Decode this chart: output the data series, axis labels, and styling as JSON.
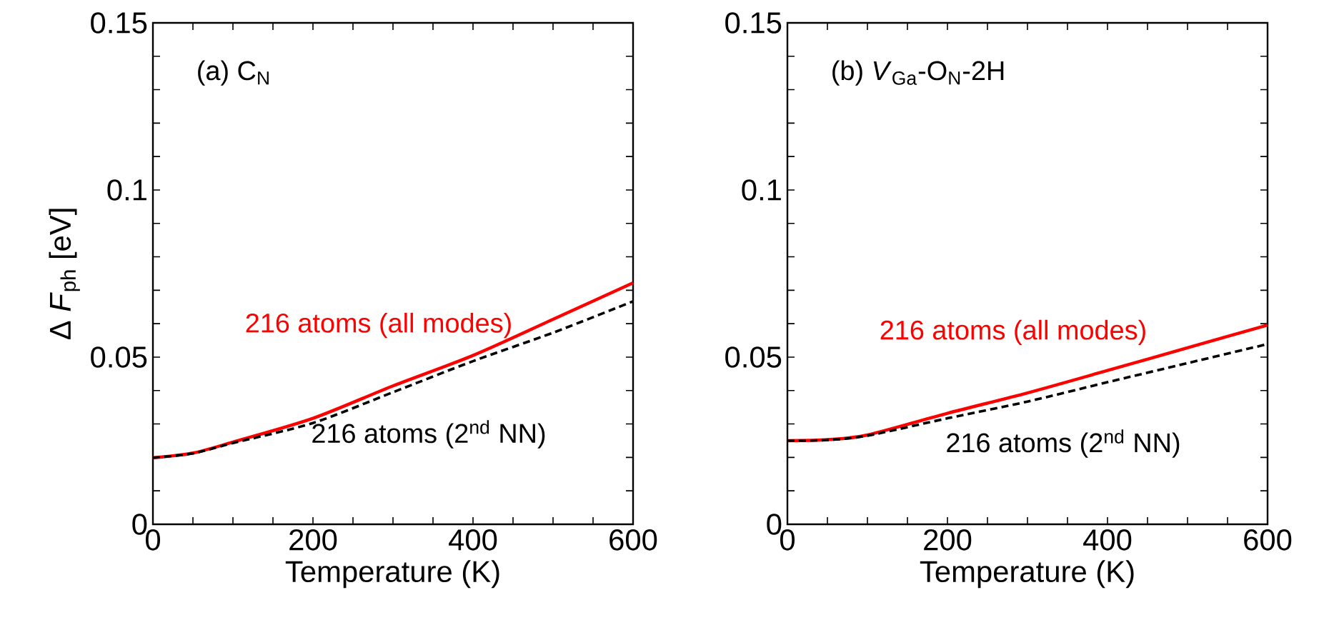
{
  "chart_data": [
    {
      "type": "line",
      "title": "(a) C$_{N}$",
      "xlabel": "Temperature (K)",
      "ylabel": "Δ *F*$_{ph}$ [eV]",
      "x": [
        0,
        50,
        100,
        200,
        300,
        400,
        500,
        600
      ],
      "xlim": [
        0,
        600
      ],
      "ylim": [
        0,
        0.15
      ],
      "xticks": [
        0,
        {
          "value": 50,
          "label": null
        },
        {
          "value": 100,
          "label": null
        },
        {
          "value": 150,
          "label": null
        },
        200,
        {
          "value": 250,
          "label": null
        },
        {
          "value": 300,
          "label": null
        },
        {
          "value": 350,
          "label": null
        },
        400,
        {
          "value": 450,
          "label": null
        },
        {
          "value": 500,
          "label": null
        },
        {
          "value": 550,
          "label": null
        },
        600
      ],
      "yticks": [
        0,
        {
          "value": 0.01,
          "label": null
        },
        {
          "value": 0.02,
          "label": null
        },
        {
          "value": 0.03,
          "label": null
        },
        {
          "value": 0.04,
          "label": null
        },
        0.05,
        {
          "value": 0.06,
          "label": null
        },
        {
          "value": 0.07,
          "label": null
        },
        {
          "value": 0.08,
          "label": null
        },
        {
          "value": 0.09,
          "label": null
        },
        0.1,
        {
          "value": 0.11,
          "label": null
        },
        {
          "value": 0.12,
          "label": null
        },
        {
          "value": 0.13,
          "label": null
        },
        {
          "value": 0.14,
          "label": null
        },
        0.15
      ],
      "series": [
        {
          "name": "216 atoms (all modes)",
          "color": "#ff0000",
          "line_style": "solid",
          "values": [
            0.0199,
            0.0213,
            0.0246,
            0.0317,
            0.0414,
            0.0505,
            0.0613,
            0.0722
          ]
        },
        {
          "name": "216 atoms (2$^{nd}$ NN)",
          "color": "#000000",
          "line_style": "dashed",
          "values": [
            0.0199,
            0.0212,
            0.0243,
            0.0303,
            0.0395,
            0.0488,
            0.0573,
            0.0667
          ]
        }
      ]
    },
    {
      "type": "line",
      "title": "(b) *V*$_{Ga}$-O$_{N}$-2H",
      "xlabel": "Temperature (K)",
      "x": [
        0,
        50,
        100,
        200,
        300,
        400,
        500,
        600
      ],
      "xlim": [
        0,
        600
      ],
      "ylim": [
        0,
        0.15
      ],
      "xticks": [
        0,
        {
          "value": 50,
          "label": null
        },
        {
          "value": 100,
          "label": null
        },
        {
          "value": 150,
          "label": null
        },
        200,
        {
          "value": 250,
          "label": null
        },
        {
          "value": 300,
          "label": null
        },
        {
          "value": 350,
          "label": null
        },
        400,
        {
          "value": 450,
          "label": null
        },
        {
          "value": 500,
          "label": null
        },
        {
          "value": 550,
          "label": null
        },
        600
      ],
      "yticks": [
        0,
        {
          "value": 0.01,
          "label": null
        },
        {
          "value": 0.02,
          "label": null
        },
        {
          "value": 0.03,
          "label": null
        },
        {
          "value": 0.04,
          "label": null
        },
        0.05,
        {
          "value": 0.06,
          "label": null
        },
        {
          "value": 0.07,
          "label": null
        },
        {
          "value": 0.08,
          "label": null
        },
        {
          "value": 0.09,
          "label": null
        },
        0.1,
        {
          "value": 0.11,
          "label": null
        },
        {
          "value": 0.12,
          "label": null
        },
        {
          "value": 0.13,
          "label": null
        },
        {
          "value": 0.14,
          "label": null
        },
        0.15
      ],
      "series": [
        {
          "name": "216 atoms (all modes)",
          "color": "#ff0000",
          "line_style": "solid",
          "values": [
            0.025,
            0.0253,
            0.0267,
            0.0332,
            0.0393,
            0.046,
            0.0528,
            0.0596
          ]
        },
        {
          "name": "216 atoms (2$^{nd}$ NN)",
          "color": "#000000",
          "line_style": "dashed",
          "values": [
            0.025,
            0.0252,
            0.0265,
            0.0317,
            0.0367,
            0.0425,
            0.0482,
            0.0539
          ]
        }
      ]
    }
  ]
}
